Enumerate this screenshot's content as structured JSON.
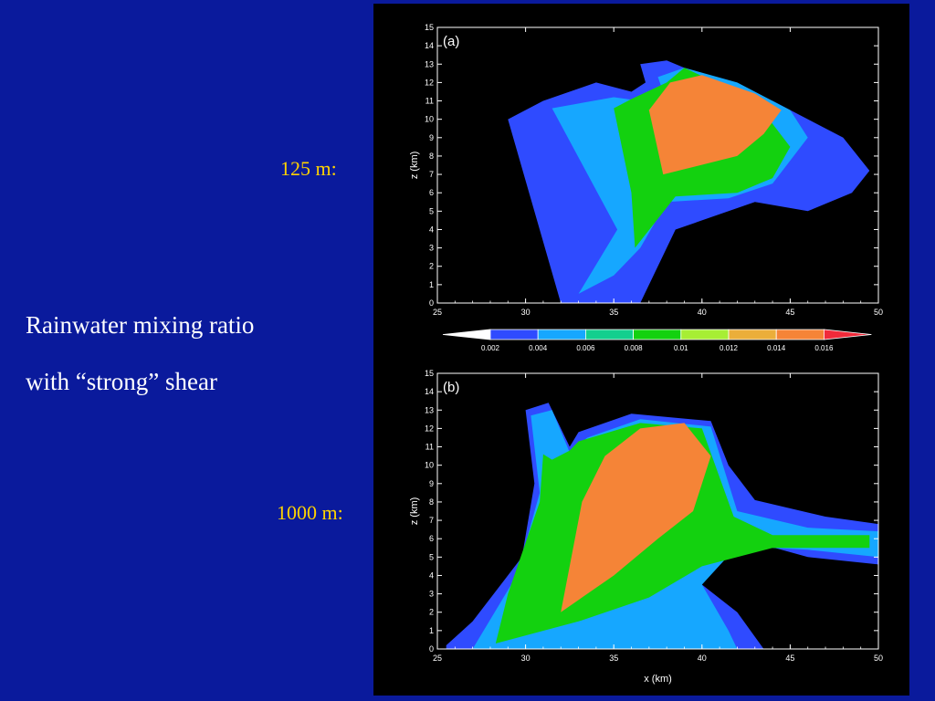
{
  "slide": {
    "labels": {
      "panel_a": "125 m:",
      "panel_b": "1000 m:"
    },
    "description": {
      "line1": "Rainwater mixing ratio",
      "line2": "with “strong” shear"
    },
    "colors": {
      "background": "#0a1a9c",
      "accent": "#ffd200",
      "text": "#ffffff"
    }
  },
  "chart_data": [
    {
      "type": "heatmap",
      "panel_label": "(a)",
      "xlabel": "",
      "ylabel": "z (km)",
      "xlim": [
        25,
        50
      ],
      "ylim": [
        0,
        15
      ],
      "xticks": [
        "25",
        "30",
        "35",
        "40",
        "45",
        "50"
      ],
      "yticks": [
        "0",
        "1",
        "2",
        "3",
        "4",
        "5",
        "6",
        "7",
        "8",
        "9",
        "10",
        "11",
        "12",
        "13",
        "14",
        "15"
      ],
      "plumes": [
        {
          "x": [
            32,
            35.5,
            36.5,
            38.5,
            43,
            46,
            48.5,
            49.5,
            48,
            44,
            41,
            38,
            36.5,
            36.8,
            36,
            34,
            31,
            29,
            32
          ],
          "y": [
            0,
            0,
            0,
            4,
            5.5,
            5,
            6,
            7.2,
            9,
            11,
            12,
            13.2,
            13,
            12,
            11.5,
            12,
            11,
            10,
            0
          ],
          "level": 0.002
        },
        {
          "x": [
            33,
            35,
            36.5,
            38,
            41.5,
            44,
            46,
            45,
            42,
            39,
            37.5,
            37.8,
            36.5,
            35,
            31.5,
            35.2,
            33
          ],
          "y": [
            0.5,
            1.5,
            3,
            5.5,
            5.7,
            6.5,
            9,
            10.5,
            12,
            12.8,
            12.3,
            11.5,
            11,
            11.2,
            10.6,
            4,
            0.5
          ],
          "level": 0.004
        },
        {
          "x": [
            36.2,
            38.5,
            42,
            44,
            45,
            43,
            39,
            38,
            36,
            35,
            36,
            36.2
          ],
          "y": [
            3,
            5.8,
            6,
            6.8,
            8.5,
            11,
            12.8,
            12,
            11.1,
            10.6,
            6,
            3
          ],
          "level": 0.008
        },
        {
          "x": [
            37.8,
            42,
            43.5,
            44.5,
            43,
            40,
            38.2,
            37,
            37.8
          ],
          "y": [
            7,
            8,
            9.2,
            10.5,
            11.4,
            12.4,
            12,
            10.5,
            7
          ],
          "level": 0.014
        }
      ]
    },
    {
      "type": "heatmap",
      "panel_label": "(b)",
      "xlabel": "x (km)",
      "ylabel": "z (km)",
      "xlim": [
        25,
        50
      ],
      "ylim": [
        0,
        15
      ],
      "xticks": [
        "25",
        "30",
        "35",
        "40",
        "45",
        "50"
      ],
      "yticks": [
        "0",
        "1",
        "2",
        "3",
        "4",
        "5",
        "6",
        "7",
        "8",
        "9",
        "10",
        "11",
        "12",
        "13",
        "14",
        "15"
      ],
      "plumes": [
        {
          "x": [
            25.5,
            43.5,
            42,
            40,
            39.5,
            41.5,
            46,
            50,
            50,
            47,
            43,
            41.5,
            40.5,
            36,
            33,
            32.5,
            31.3,
            30,
            30.5,
            29.8,
            27,
            25.5
          ],
          "y": [
            0,
            0,
            2,
            3.5,
            5.5,
            6.2,
            5,
            4.6,
            6.8,
            7.2,
            8.1,
            10,
            12.4,
            12.8,
            11.8,
            11,
            13.4,
            13,
            9,
            5,
            1.5,
            0.2
          ],
          "level": 0.002
        },
        {
          "x": [
            27,
            42,
            41.5,
            40,
            42,
            46,
            50,
            50,
            46,
            42,
            40.5,
            36.5,
            33.5,
            32.5,
            31.5,
            30.3,
            30.8,
            29.5,
            27
          ],
          "y": [
            0,
            0,
            1,
            3.5,
            5.6,
            5.4,
            5,
            6.4,
            6.6,
            7.5,
            12.1,
            12.5,
            11.5,
            10.7,
            13,
            12.7,
            8.5,
            4,
            0
          ],
          "level": 0.004
        },
        {
          "x": [
            28.3,
            33,
            37,
            40,
            44,
            49.5,
            49.5,
            44,
            41.8,
            40,
            36.5,
            33,
            32.5,
            31.5,
            31,
            30.8,
            29,
            28.3
          ],
          "y": [
            0.3,
            1.5,
            2.8,
            4.5,
            5.5,
            5.5,
            6.2,
            6.2,
            7.2,
            12,
            12.3,
            11.3,
            10.8,
            10.3,
            10.6,
            8,
            3,
            0.3
          ],
          "level": 0.008
        },
        {
          "x": [
            32,
            35,
            37.5,
            39.5,
            40.5,
            39,
            36.5,
            34.5,
            33.2,
            32
          ],
          "y": [
            2,
            4,
            6,
            7.5,
            10.5,
            12.3,
            12,
            10.5,
            8,
            2
          ],
          "level": 0.014
        }
      ]
    }
  ],
  "colorbar": {
    "levels": [
      "0.002",
      "0.004",
      "0.006",
      "0.008",
      "0.01",
      "0.012",
      "0.014",
      "0.016"
    ],
    "colors": [
      "#ffffff",
      "#2f4bff",
      "#16a7ff",
      "#13cf8e",
      "#13d10f",
      "#a7ee34",
      "#ebae3a",
      "#f58437",
      "#f02a3a"
    ]
  }
}
